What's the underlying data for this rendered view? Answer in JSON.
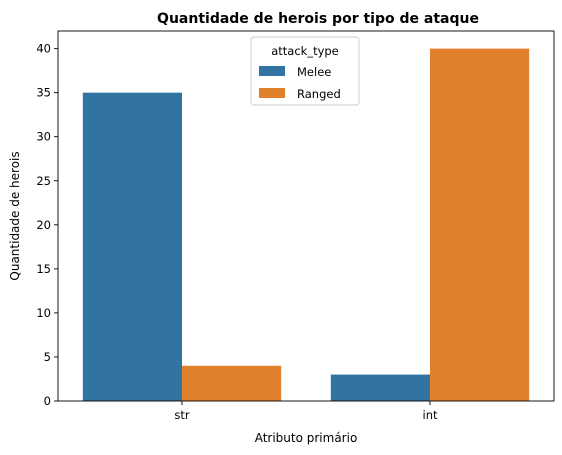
{
  "chart_data": {
    "type": "bar",
    "title": "Quantidade de herois por tipo de ataque",
    "xlabel": "Atributo primário",
    "ylabel": "Quantidade de herois",
    "categories": [
      "str",
      "int"
    ],
    "series": [
      {
        "name": "Melee",
        "values": [
          35,
          3
        ],
        "color": "#3274a1"
      },
      {
        "name": "Ranged",
        "values": [
          4,
          40
        ],
        "color": "#e1812c"
      }
    ],
    "ylim": [
      0,
      42
    ],
    "yticks": [
      0,
      5,
      10,
      15,
      20,
      25,
      30,
      35,
      40
    ],
    "grid": false,
    "legend": {
      "title": "attack_type",
      "placement": "top-center"
    }
  }
}
